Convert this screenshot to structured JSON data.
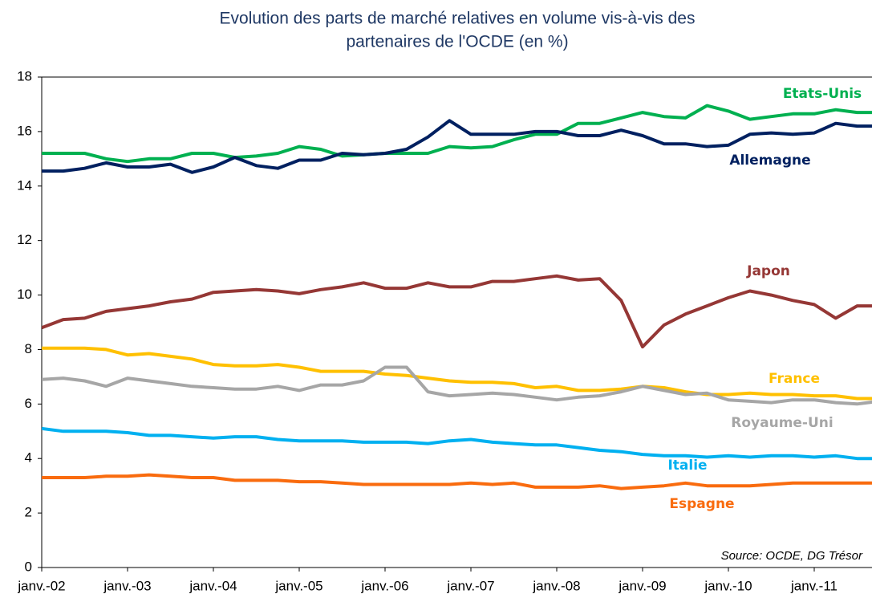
{
  "chart_data": {
    "type": "line",
    "title": [
      "Evolution des parts de marché relatives en volume vis-à-vis des",
      "partenaires de l'OCDE (en %)"
    ],
    "annotation": "Source: OCDE, DG Trésor",
    "categories": [
      "janv.-02",
      null,
      null,
      null,
      "janv.-03",
      null,
      null,
      null,
      "janv.-04",
      null,
      null,
      null,
      "janv.-05",
      null,
      null,
      null,
      "janv.-06",
      null,
      null,
      null,
      "janv.-07",
      null,
      null,
      null,
      "janv.-08",
      null,
      null,
      null,
      "janv.-09",
      null,
      null,
      null,
      "janv.-10",
      null,
      null,
      null,
      "janv.-11",
      null,
      null,
      null
    ],
    "ylim": [
      0,
      18
    ],
    "yticks": [
      0,
      2,
      4,
      6,
      8,
      10,
      12,
      14,
      16,
      18
    ],
    "grid": false,
    "series": [
      {
        "name": "Etats-Unis",
        "color": "#00b050",
        "values": [
          15.2,
          15.2,
          15.2,
          15.0,
          14.9,
          15.0,
          15.0,
          15.2,
          15.2,
          15.05,
          15.1,
          15.2,
          15.45,
          15.35,
          15.1,
          15.15,
          15.2,
          15.2,
          15.2,
          15.45,
          15.4,
          15.45,
          15.7,
          15.9,
          15.9,
          16.3,
          16.3,
          16.5,
          16.7,
          16.55,
          16.5,
          16.95,
          16.75,
          16.45,
          16.55,
          16.65,
          16.65,
          16.8,
          16.7,
          16.7
        ]
      },
      {
        "name": "Allemagne",
        "color": "#002060",
        "values": [
          14.55,
          14.55,
          14.65,
          14.85,
          14.7,
          14.7,
          14.8,
          14.5,
          14.7,
          15.05,
          14.75,
          14.65,
          14.95,
          14.95,
          15.2,
          15.15,
          15.2,
          15.35,
          15.8,
          16.4,
          15.9,
          15.9,
          15.9,
          16.0,
          16.0,
          15.85,
          15.85,
          16.05,
          15.85,
          15.55,
          15.55,
          15.45,
          15.5,
          15.9,
          15.95,
          15.9,
          15.95,
          16.3,
          16.2,
          16.2
        ]
      },
      {
        "name": "Japon",
        "color": "#953735",
        "values": [
          8.8,
          9.1,
          9.15,
          9.4,
          9.5,
          9.6,
          9.75,
          9.85,
          10.1,
          10.15,
          10.2,
          10.15,
          10.05,
          10.2,
          10.3,
          10.45,
          10.25,
          10.25,
          10.45,
          10.3,
          10.3,
          10.5,
          10.5,
          10.6,
          10.7,
          10.55,
          10.6,
          9.8,
          8.1,
          8.9,
          9.3,
          9.6,
          9.9,
          10.15,
          10.0,
          9.8,
          9.65,
          9.15,
          9.6,
          9.6
        ]
      },
      {
        "name": "France",
        "color": "#ffc000",
        "values": [
          8.05,
          8.05,
          8.05,
          8.0,
          7.8,
          7.85,
          7.75,
          7.65,
          7.45,
          7.4,
          7.4,
          7.45,
          7.35,
          7.2,
          7.2,
          7.2,
          7.1,
          7.05,
          6.95,
          6.85,
          6.8,
          6.8,
          6.75,
          6.6,
          6.65,
          6.5,
          6.5,
          6.55,
          6.65,
          6.6,
          6.45,
          6.35,
          6.35,
          6.4,
          6.35,
          6.35,
          6.3,
          6.3,
          6.2,
          6.2
        ]
      },
      {
        "name": "Royaume-Uni",
        "color": "#a6a6a6",
        "values": [
          6.9,
          6.95,
          6.85,
          6.65,
          6.95,
          6.85,
          6.75,
          6.65,
          6.6,
          6.55,
          6.55,
          6.65,
          6.5,
          6.7,
          6.7,
          6.85,
          7.35,
          7.35,
          6.45,
          6.3,
          6.35,
          6.4,
          6.35,
          6.25,
          6.15,
          6.25,
          6.3,
          6.45,
          6.65,
          6.5,
          6.35,
          6.4,
          6.15,
          6.1,
          6.05,
          6.15,
          6.15,
          6.05,
          6.0,
          6.1
        ]
      },
      {
        "name": "Italie",
        "color": "#00b0f0",
        "values": [
          5.1,
          5.0,
          5.0,
          5.0,
          4.95,
          4.85,
          4.85,
          4.8,
          4.75,
          4.8,
          4.8,
          4.7,
          4.65,
          4.65,
          4.65,
          4.6,
          4.6,
          4.6,
          4.55,
          4.65,
          4.7,
          4.6,
          4.55,
          4.5,
          4.5,
          4.4,
          4.3,
          4.25,
          4.15,
          4.1,
          4.1,
          4.05,
          4.1,
          4.05,
          4.1,
          4.1,
          4.05,
          4.1,
          4.0,
          4.0
        ]
      },
      {
        "name": "Espagne",
        "color": "#f96b0e",
        "values": [
          3.3,
          3.3,
          3.3,
          3.35,
          3.35,
          3.4,
          3.35,
          3.3,
          3.3,
          3.2,
          3.2,
          3.2,
          3.15,
          3.15,
          3.1,
          3.05,
          3.05,
          3.05,
          3.05,
          3.05,
          3.1,
          3.05,
          3.1,
          2.95,
          2.95,
          2.95,
          3.0,
          2.9,
          2.95,
          3.0,
          3.1,
          3.0,
          3.0,
          3.0,
          3.05,
          3.1,
          3.1,
          3.1,
          3.1,
          3.1
        ]
      }
    ]
  }
}
